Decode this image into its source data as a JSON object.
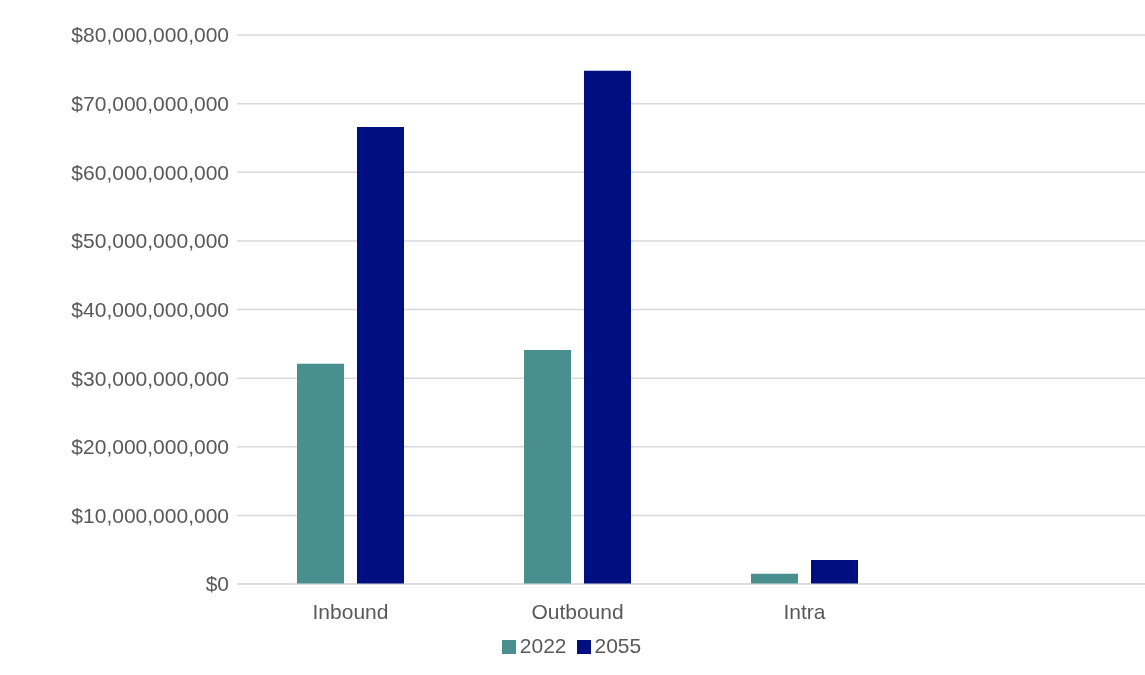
{
  "chart_data": {
    "type": "bar",
    "categories": [
      "Inbound",
      "Outbound",
      "Intra",
      null
    ],
    "series": [
      {
        "name": "2022",
        "color": "#4a8f8f",
        "values": [
          32100000000,
          34100000000,
          1500000000,
          null
        ]
      },
      {
        "name": "2055",
        "color": "#000f80",
        "values": [
          66600000000,
          74800000000,
          3500000000,
          null
        ]
      }
    ],
    "ylim": [
      0,
      80000000000
    ],
    "yticks": [
      {
        "value": 0,
        "label": "$0"
      },
      {
        "value": 10000000000,
        "label": "$10,000,000,000"
      },
      {
        "value": 20000000000,
        "label": "$20,000,000,000"
      },
      {
        "value": 30000000000,
        "label": "$30,000,000,000"
      },
      {
        "value": 40000000000,
        "label": "$40,000,000,000"
      },
      {
        "value": 50000000000,
        "label": "$50,000,000,000"
      },
      {
        "value": 60000000000,
        "label": "$60,000,000,000"
      },
      {
        "value": 70000000000,
        "label": "$70,000,000,000"
      },
      {
        "value": 80000000000,
        "label": "$80,000,000,000"
      }
    ],
    "grid": "y",
    "legend": "bottom"
  }
}
